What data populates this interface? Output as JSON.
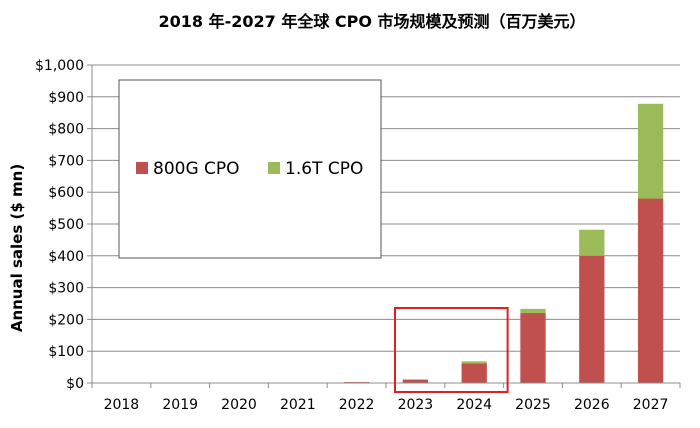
{
  "chart_data": {
    "type": "bar",
    "stacked": true,
    "title": "2018 年-2027 年全球 CPO 市场规模及预测（百万美元）",
    "xlabel": "",
    "ylabel": "Annual sales ($ mn)",
    "categories": [
      "2018",
      "2019",
      "2020",
      "2021",
      "2022",
      "2023",
      "2024",
      "2025",
      "2026",
      "2027"
    ],
    "series": [
      {
        "name": "800G CPO",
        "color": "#c0504d",
        "values": [
          0,
          0,
          0,
          0,
          3,
          10,
          62,
          220,
          400,
          580
        ]
      },
      {
        "name": "1.6T CPO",
        "color": "#9bbb59",
        "values": [
          0,
          0,
          0,
          0,
          0,
          2,
          6,
          13,
          82,
          298
        ]
      }
    ],
    "ylim": [
      0,
      1000
    ],
    "yticks": [
      0,
      100,
      200,
      300,
      400,
      500,
      600,
      700,
      800,
      900,
      1000
    ],
    "ytick_labels": [
      "$0",
      "$100",
      "$200",
      "$300",
      "$400",
      "$500",
      "$600",
      "$700",
      "$800",
      "$900",
      "$1,000"
    ],
    "grid": true,
    "legend_position": "top-left",
    "highlight": {
      "categories": [
        "2023",
        "2024"
      ],
      "color": "#e02020"
    }
  }
}
